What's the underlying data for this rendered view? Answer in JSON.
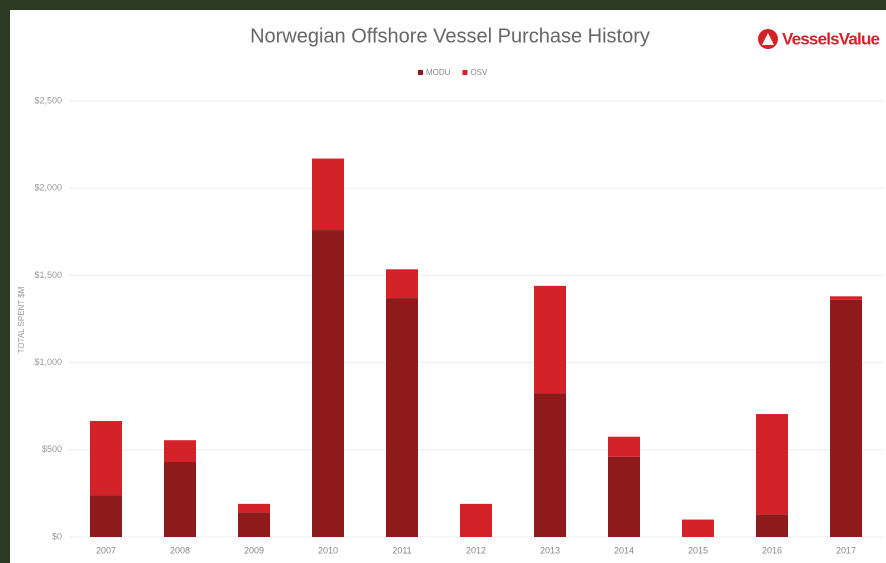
{
  "chart_data": {
    "type": "stacked_bar",
    "title": "Norwegian Offshore Vessel Purchase History",
    "logo": "VesselsValue",
    "y_label": "TOTAL SPENT $M",
    "categories": [
      "2007",
      "2008",
      "2009",
      "2010",
      "2011",
      "2012",
      "2013",
      "2014",
      "2015",
      "2016",
      "2017"
    ],
    "series": [
      {
        "name": "MODU",
        "color": "#8e1b1b",
        "values": [
          240,
          430,
          140,
          1760,
          1370,
          0,
          825,
          460,
          0,
          130,
          1360
        ]
      },
      {
        "name": "OSV",
        "color": "#d42229",
        "values": [
          425,
          125,
          50,
          410,
          165,
          190,
          615,
          115,
          100,
          575,
          20
        ]
      }
    ],
    "ylim": [
      0,
      2500
    ],
    "yticks": [
      {
        "value": 0,
        "label": "$0"
      },
      {
        "value": 500,
        "label": "$500"
      },
      {
        "value": 1000,
        "label": "$1,000"
      },
      {
        "value": 1500,
        "label": "$1,500"
      },
      {
        "value": 2000,
        "label": "$2,000"
      },
      {
        "value": 2500,
        "label": "$2,500"
      }
    ],
    "grid": true
  }
}
